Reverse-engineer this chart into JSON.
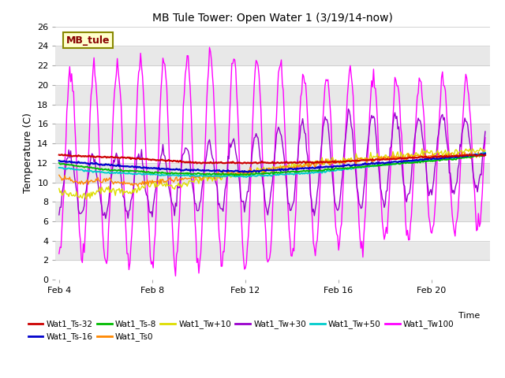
{
  "title": "MB Tule Tower: Open Water 1 (3/19/14-now)",
  "xlabel": "Time",
  "ylabel": "Temperature (C)",
  "ylim": [
    0,
    26
  ],
  "yticks": [
    0,
    2,
    4,
    6,
    8,
    10,
    12,
    14,
    16,
    18,
    20,
    22,
    24,
    26
  ],
  "xlim_days": [
    3.85,
    22.5
  ],
  "xtick_days": [
    4,
    8,
    12,
    16,
    20
  ],
  "xtick_labels": [
    "Feb 4",
    "Feb 8",
    "Feb 12",
    "Feb 16",
    "Feb 20"
  ],
  "bg_color": "#ffffff",
  "series_colors": {
    "Wat1_Ts-32": "#cc0000",
    "Wat1_Ts-16": "#0000cc",
    "Wat1_Ts-8": "#00bb00",
    "Wat1_Ts0": "#ff8800",
    "Wat1_Tw+10": "#dddd00",
    "Wat1_Tw+30": "#9900cc",
    "Wat1_Tw+50": "#00cccc",
    "Wat1_Tw100": "#ff00ff"
  },
  "legend_box_color": "#ffffcc",
  "legend_box_edge": "#888800",
  "legend_box_text": "#880000",
  "legend_box_label": "MB_tule"
}
